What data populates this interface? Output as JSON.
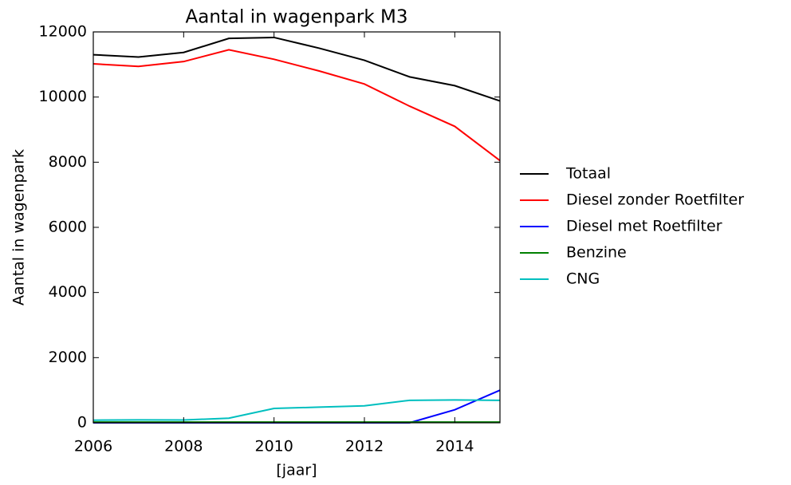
{
  "chart_data": {
    "type": "line",
    "title": "Aantal in wagenpark  M3",
    "xlabel": "[jaar]",
    "ylabel": "Aantal in wagenpark",
    "x": [
      2006,
      2007,
      2008,
      2009,
      2010,
      2011,
      2012,
      2013,
      2014,
      2015
    ],
    "series": [
      {
        "name": "Totaal",
        "color": "#000000",
        "values": [
          11300,
          11230,
          11370,
          11800,
          11830,
          11500,
          11130,
          10620,
          10350,
          9880
        ]
      },
      {
        "name": "Diesel zonder Roetfilter",
        "color": "#ff0000",
        "values": [
          11020,
          10940,
          11090,
          11450,
          11160,
          10800,
          10400,
          9720,
          9100,
          8050
        ]
      },
      {
        "name": "Diesel met Roetfilter",
        "color": "#0000ff",
        "values": [
          0,
          0,
          0,
          0,
          0,
          0,
          0,
          0,
          400,
          1000
        ]
      },
      {
        "name": "Benzine",
        "color": "#008000",
        "values": [
          20,
          20,
          20,
          20,
          20,
          20,
          20,
          20,
          20,
          20
        ]
      },
      {
        "name": "CNG",
        "color": "#00bfbf",
        "values": [
          80,
          90,
          85,
          140,
          440,
          480,
          520,
          690,
          700,
          690
        ]
      }
    ],
    "xlim": [
      2006,
      2015
    ],
    "xticks": [
      2006,
      2008,
      2010,
      2012,
      2014
    ],
    "ylim": [
      0,
      12000
    ],
    "yticks": [
      0,
      2000,
      4000,
      6000,
      8000,
      10000,
      12000
    ],
    "legend": "outside right"
  }
}
